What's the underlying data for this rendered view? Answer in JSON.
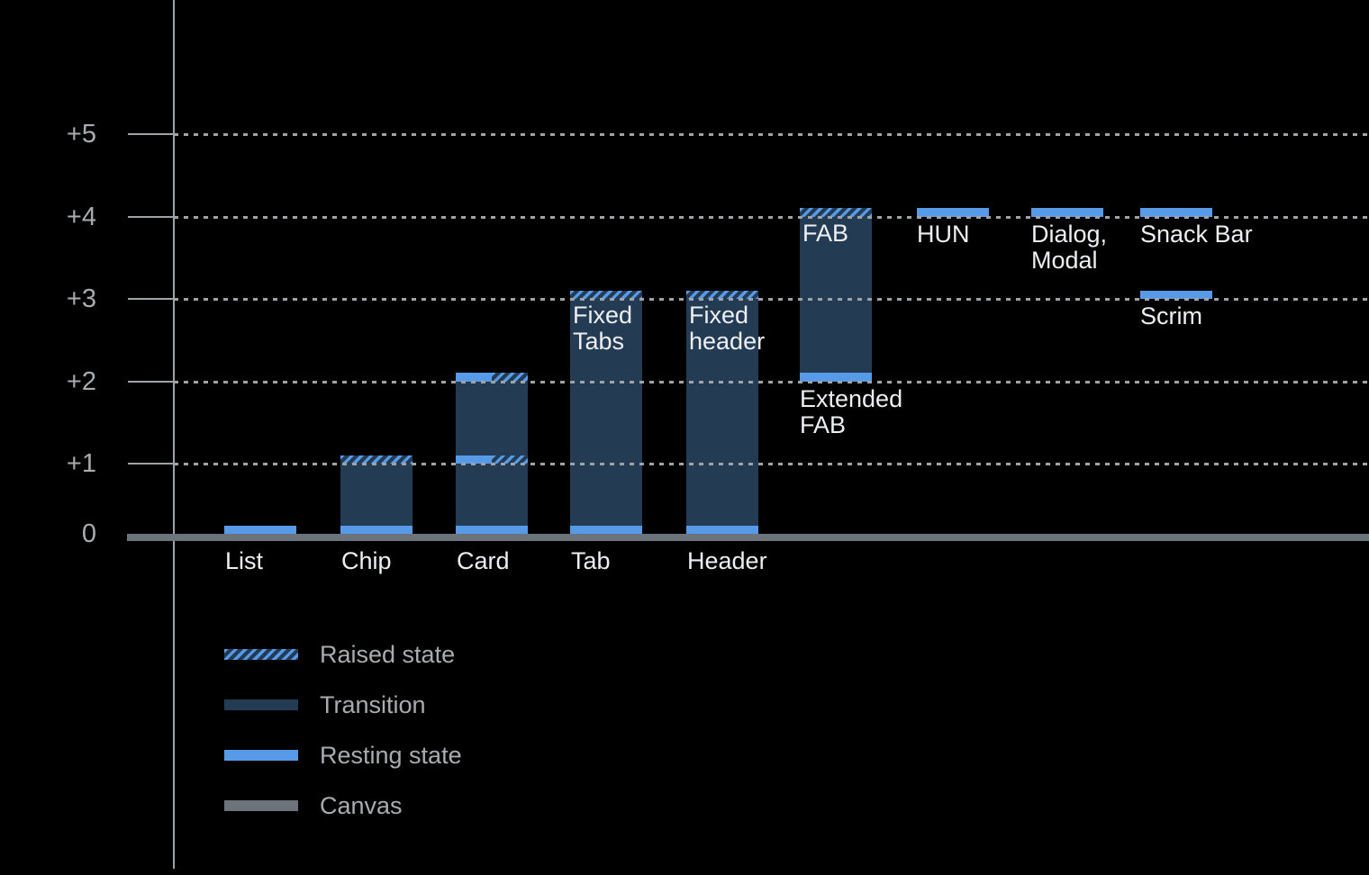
{
  "colors": {
    "background": "#000000",
    "resting": "#579BE8",
    "transition": "#243B54",
    "canvas": "#6C737A",
    "grid": "#9EA3A8",
    "tick_label": "#A8ACB1",
    "bar_label": "#EDEFF2"
  },
  "chart_data": {
    "type": "bar",
    "title": "",
    "xlabel": "",
    "ylabel": "",
    "ylim": [
      0,
      5
    ],
    "grid": "horizontal-dotted",
    "legend_position": "bottom-left",
    "yticks": [
      {
        "label": "+5",
        "level": 5
      },
      {
        "label": "+4",
        "level": 4
      },
      {
        "label": "+3",
        "level": 3
      },
      {
        "label": "+2",
        "level": 2
      },
      {
        "label": "+1",
        "level": 1
      },
      {
        "label": "0",
        "level": 0
      }
    ],
    "bars": [
      {
        "name": "list",
        "column": 0,
        "axis_label": "List",
        "segments": [
          {
            "kind": "resting",
            "level": 0
          }
        ]
      },
      {
        "name": "chip",
        "column": 1,
        "axis_label": "Chip",
        "segments": [
          {
            "kind": "transition",
            "from": 0,
            "to": 1
          },
          {
            "kind": "resting",
            "level": 0
          },
          {
            "kind": "raised",
            "level": 1
          }
        ]
      },
      {
        "name": "card",
        "column": 2,
        "axis_label": "Card",
        "segments": [
          {
            "kind": "transition",
            "from": 0,
            "to": 2
          },
          {
            "kind": "resting",
            "level": 0
          },
          {
            "kind": "resting-raised",
            "level": 1
          },
          {
            "kind": "resting-raised",
            "level": 2
          }
        ]
      },
      {
        "name": "tab",
        "column": 3,
        "axis_label": "Tab",
        "top_label": "Fixed Tabs",
        "segments": [
          {
            "kind": "transition",
            "from": 0,
            "to": 3
          },
          {
            "kind": "resting",
            "level": 0
          },
          {
            "kind": "raised",
            "level": 3
          }
        ]
      },
      {
        "name": "header",
        "column": 4,
        "axis_label": "Header",
        "top_label": "Fixed header",
        "segments": [
          {
            "kind": "transition",
            "from": 0,
            "to": 3
          },
          {
            "kind": "resting",
            "level": 0
          },
          {
            "kind": "raised",
            "level": 3
          }
        ]
      },
      {
        "name": "extended-fab",
        "column": 5,
        "top_label": "FAB",
        "below_label": "Extended FAB",
        "segments": [
          {
            "kind": "transition",
            "from": 2,
            "to": 4
          },
          {
            "kind": "resting",
            "level": 2
          },
          {
            "kind": "raised",
            "level": 4
          }
        ]
      },
      {
        "name": "hun",
        "column": 6,
        "below_label": "HUN",
        "segments": [
          {
            "kind": "resting",
            "level": 4
          }
        ]
      },
      {
        "name": "dialog-modal",
        "column": 7,
        "below_label": "Dialog, Modal",
        "segments": [
          {
            "kind": "resting",
            "level": 4
          }
        ]
      },
      {
        "name": "snack-bar",
        "column": 8,
        "below_label": "Snack Bar",
        "segments": [
          {
            "kind": "resting",
            "level": 4
          }
        ]
      },
      {
        "name": "scrim",
        "column": 8,
        "below_label": "Scrim",
        "segments": [
          {
            "kind": "resting",
            "level": 3
          }
        ]
      }
    ],
    "legend": [
      {
        "kind": "raised",
        "label": "Raised state"
      },
      {
        "kind": "transition",
        "label": "Transition"
      },
      {
        "kind": "resting",
        "label": "Resting state"
      },
      {
        "kind": "canvas",
        "label": "Canvas"
      }
    ]
  }
}
